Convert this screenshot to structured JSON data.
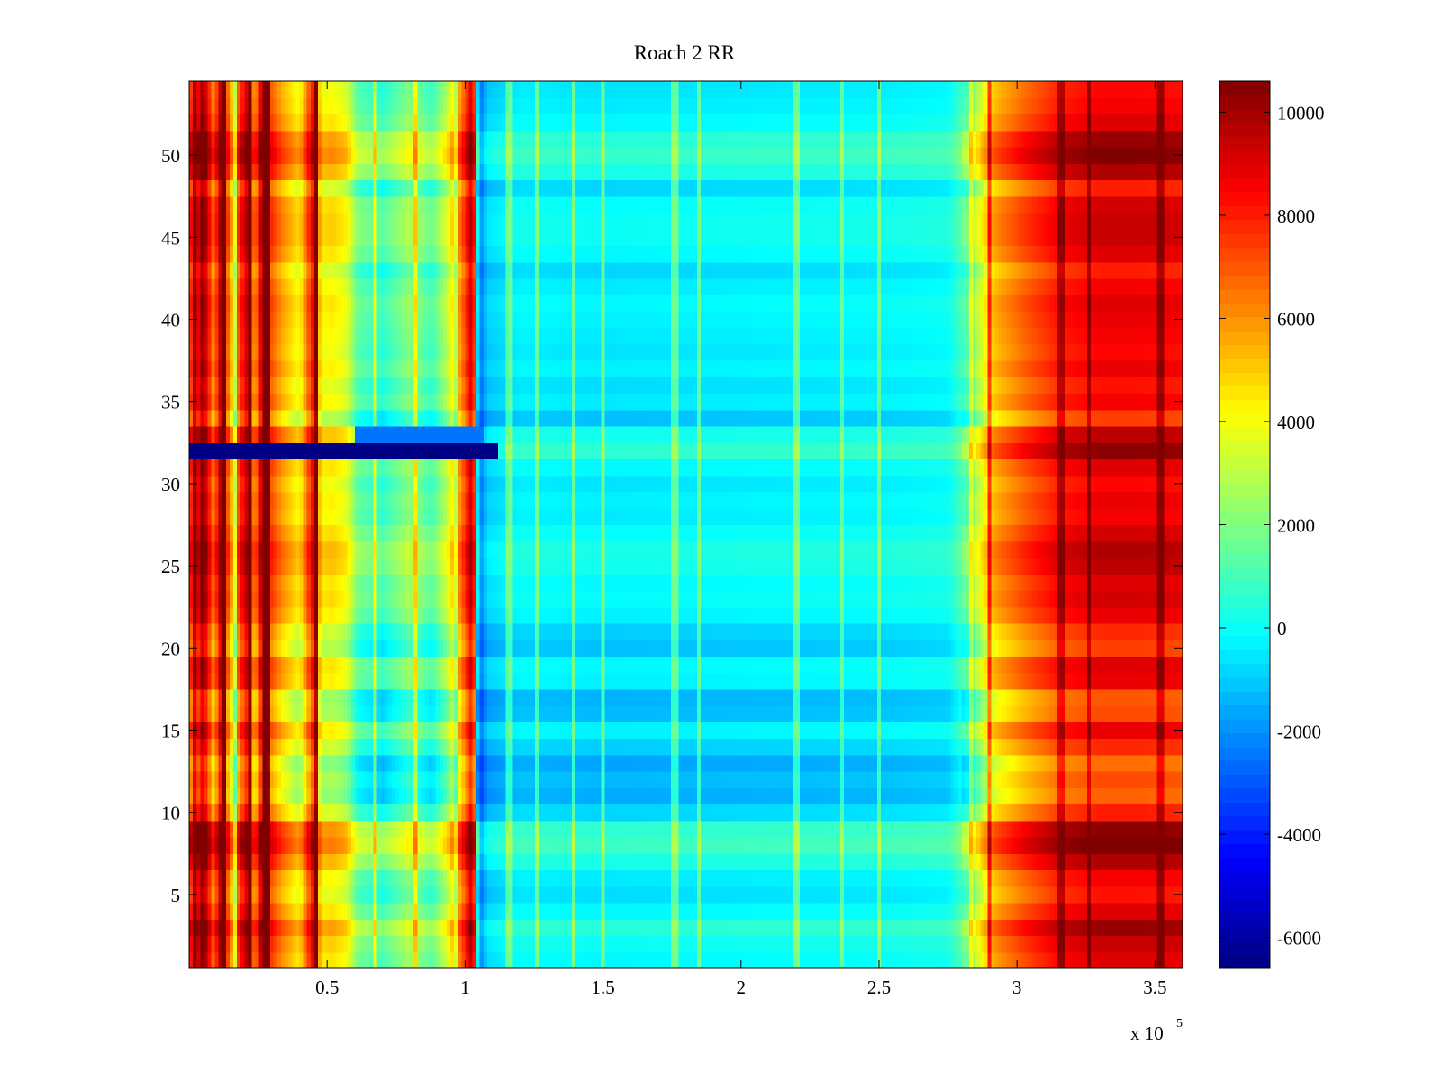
{
  "chart_data": {
    "type": "heatmap",
    "title": "Roach 2 RR",
    "xlabel": "",
    "ylabel": "",
    "x_range": [
      0,
      360000
    ],
    "y_range": [
      0.5,
      54.5
    ],
    "x_ticks": [
      50000,
      100000,
      150000,
      200000,
      250000,
      300000,
      350000
    ],
    "x_tick_labels": [
      "0.5",
      "1",
      "1.5",
      "2",
      "2.5",
      "3",
      "3.5"
    ],
    "x_multiplier": {
      "base": "x 10",
      "exponent": "5"
    },
    "y_ticks": [
      5,
      10,
      15,
      20,
      25,
      30,
      35,
      40,
      45,
      50
    ],
    "y_tick_labels": [
      "5",
      "10",
      "15",
      "20",
      "25",
      "30",
      "35",
      "40",
      "45",
      "50"
    ],
    "rows": 54,
    "colormap": "jet",
    "clim": [
      -6600,
      10600
    ],
    "colorbar_ticks": [
      -6000,
      -4000,
      -2000,
      0,
      2000,
      4000,
      6000,
      8000,
      10000
    ],
    "colorbar_tick_labels": [
      "-6000",
      "-4000",
      "-2000",
      "0",
      "2000",
      "4000",
      "6000",
      "8000",
      "10000"
    ],
    "grid": false,
    "column_profile": [
      [
        0,
        7500
      ],
      [
        3000,
        8500
      ],
      [
        5000,
        10500
      ],
      [
        9000,
        6000
      ],
      [
        12000,
        10500
      ],
      [
        15000,
        5000
      ],
      [
        18000,
        7000
      ],
      [
        21000,
        9500
      ],
      [
        24000,
        5500
      ],
      [
        27000,
        10500
      ],
      [
        30000,
        7000
      ],
      [
        34000,
        5500
      ],
      [
        40000,
        4000
      ],
      [
        45000,
        8500
      ],
      [
        48000,
        4000
      ],
      [
        52000,
        4200
      ],
      [
        57000,
        3600
      ],
      [
        61000,
        1400
      ],
      [
        70000,
        600
      ],
      [
        80000,
        2200
      ],
      [
        88000,
        900
      ],
      [
        94000,
        3200
      ],
      [
        100000,
        7200
      ],
      [
        103000,
        9800
      ],
      [
        105000,
        -2800
      ],
      [
        108000,
        -1000
      ],
      [
        120000,
        -300
      ],
      [
        150000,
        -500
      ],
      [
        200000,
        -400
      ],
      [
        250000,
        -300
      ],
      [
        275000,
        -100
      ],
      [
        283000,
        1500
      ],
      [
        288000,
        4000
      ],
      [
        293000,
        5500
      ],
      [
        303000,
        6800
      ],
      [
        315000,
        8000
      ],
      [
        330000,
        8600
      ],
      [
        345000,
        8600
      ],
      [
        360000,
        8400
      ]
    ],
    "row_offsets": [
      400,
      800,
      1600,
      400,
      -400,
      0,
      1200,
      2200,
      1800,
      -600,
      -1800,
      -1400,
      -2000,
      -800,
      200,
      -1400,
      -1600,
      200,
      400,
      -1200,
      -800,
      200,
      600,
      400,
      1000,
      1200,
      600,
      0,
      200,
      -200,
      400,
      1800,
      1000,
      -1200,
      0,
      -400,
      200,
      -200,
      0,
      200,
      400,
      0,
      -600,
      400,
      800,
      800,
      600,
      -600,
      1200,
      2000,
      1600,
      400,
      0,
      -200
    ],
    "special_row": {
      "row": 32,
      "x_start": 0,
      "x_end": 112000,
      "value": -6500
    },
    "special_row_partial": {
      "row": 33,
      "x_start": 60000,
      "x_end": 106000,
      "value": -2500
    },
    "stripes": [
      {
        "x": 2500,
        "delta": 2000
      },
      {
        "x": 13000,
        "delta": 3000
      },
      {
        "x": 17000,
        "delta": -3000
      },
      {
        "x": 22500,
        "delta": 3500
      },
      {
        "x": 28000,
        "delta": 3500
      },
      {
        "x": 46000,
        "delta": 4000
      },
      {
        "x": 67000,
        "delta": 2500
      },
      {
        "x": 82000,
        "delta": 2500
      },
      {
        "x": 97000,
        "delta": -2000
      },
      {
        "x": 116000,
        "delta": 2000
      },
      {
        "x": 126000,
        "delta": 2000
      },
      {
        "x": 139000,
        "delta": 2200
      },
      {
        "x": 150000,
        "delta": 2200
      },
      {
        "x": 176000,
        "delta": 2000
      },
      {
        "x": 185000,
        "delta": 2000
      },
      {
        "x": 220000,
        "delta": 2000
      },
      {
        "x": 237000,
        "delta": 1800
      },
      {
        "x": 250000,
        "delta": 2000
      },
      {
        "x": 283000,
        "delta": 1800
      },
      {
        "x": 290000,
        "delta": 3000
      },
      {
        "x": 316000,
        "delta": 1800
      },
      {
        "x": 326000,
        "delta": 1800
      },
      {
        "x": 352000,
        "delta": 1800
      }
    ]
  }
}
